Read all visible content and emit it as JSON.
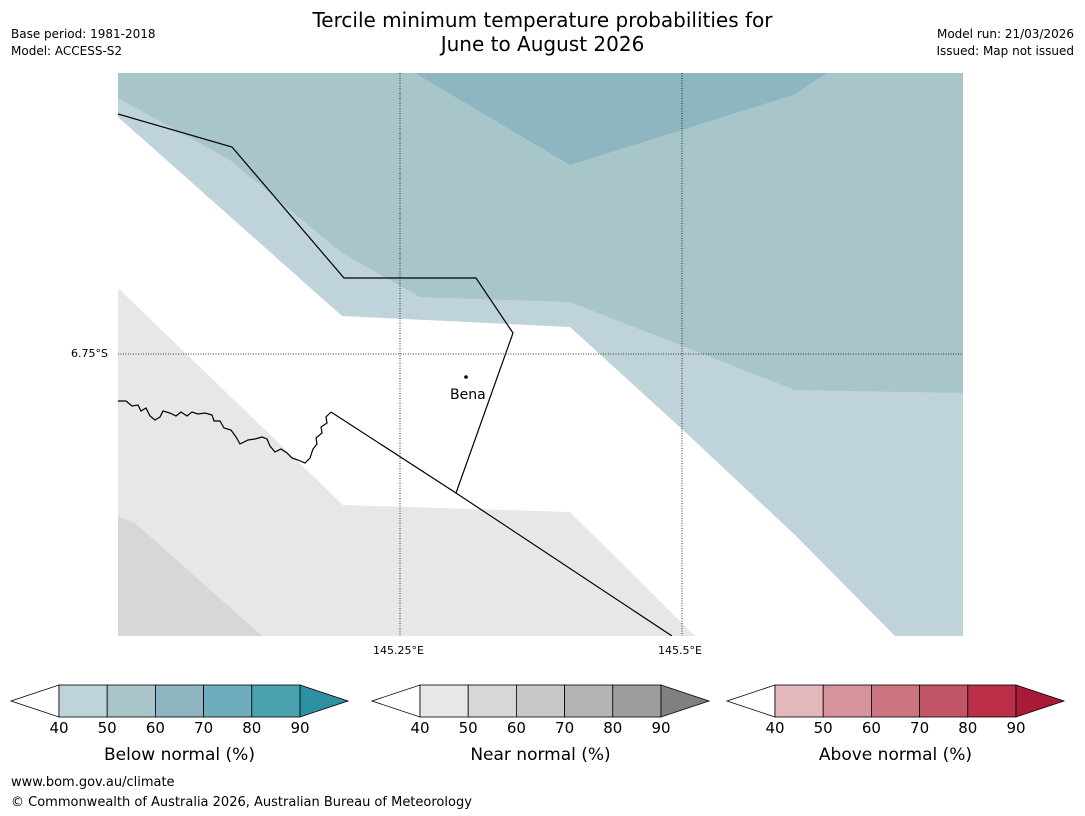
{
  "title_line1": "Tercile minimum temperature probabilities for",
  "title_line2": "June to August 2026",
  "meta_left": {
    "base_period": "Base period: 1981-2018",
    "model": "Model: ACCESS-S2"
  },
  "meta_right": {
    "model_run": "Model run: 21/03/2026",
    "issued": "Issued: Map not issued"
  },
  "map": {
    "lat_label": "6.75°S",
    "lon_labels": [
      "145.25°E",
      "145.5°E"
    ],
    "place_name": "Bena"
  },
  "legends": [
    {
      "title": "Below normal (%)",
      "ticks": [
        "40",
        "50",
        "60",
        "70",
        "80",
        "90"
      ],
      "colors": [
        "#ffffff",
        "#bfd4da",
        "#a8c6ca",
        "#8db6c2",
        "#6eadbb",
        "#4aa2b0",
        "#2e90a3"
      ]
    },
    {
      "title": "Near normal (%)",
      "ticks": [
        "40",
        "50",
        "60",
        "70",
        "80",
        "90"
      ],
      "colors": [
        "#ffffff",
        "#e7e7e7",
        "#d7d7d7",
        "#c8c8c8",
        "#b4b4b4",
        "#9e9e9e",
        "#808080"
      ]
    },
    {
      "title": "Above normal (%)",
      "ticks": [
        "40",
        "50",
        "60",
        "70",
        "80",
        "90"
      ],
      "colors": [
        "#ffffff",
        "#e3b8bd",
        "#d5939b",
        "#cc7480",
        "#c25566",
        "#bb3048",
        "#a81a35"
      ]
    }
  ],
  "footer": {
    "url": "www.bom.gov.au/climate",
    "copyright": "© Commonwealth of Australia 2026, Australian Bureau of Meteorology"
  },
  "colors": {
    "below_40": "#bfd4da",
    "below_50": "#a8c6ca",
    "below_60": "#8db6c2",
    "near_40": "#e7e7e7",
    "near_50": "#d7d7d7"
  }
}
